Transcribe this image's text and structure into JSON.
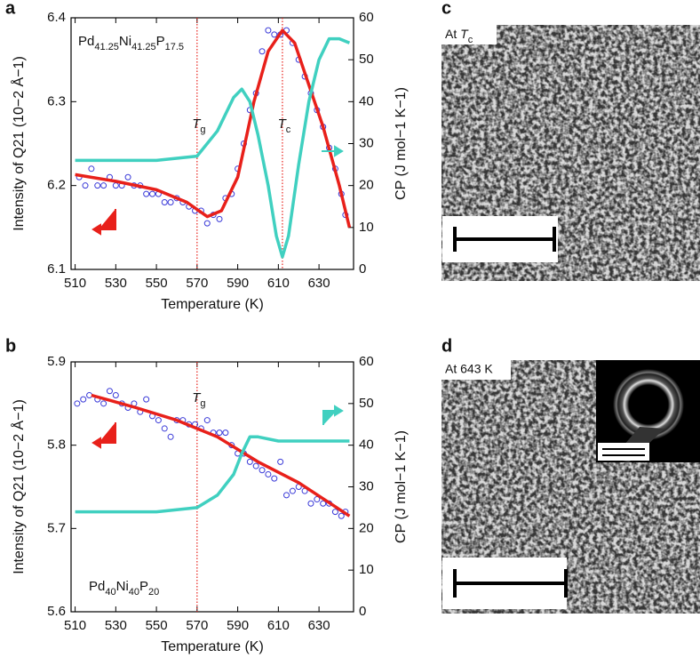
{
  "chart_data": [
    {
      "type": "line",
      "panel": "a",
      "inset_text": "Pd41.25Ni41.25P17.5",
      "xlabel": "Temperature (K)",
      "ylabel": "Intensity of Q21 (10−2 Å−1)",
      "y2label": "CP (J mol−1 K−1)",
      "xlim": [
        508,
        647
      ],
      "xticks": [
        510,
        530,
        550,
        570,
        590,
        610,
        630
      ],
      "ylim": [
        6.1,
        6.4
      ],
      "yticks": [
        6.1,
        6.2,
        6.3,
        6.4
      ],
      "y2lim": [
        0,
        60
      ],
      "y2ticks": [
        0,
        10,
        20,
        30,
        40,
        50,
        60
      ],
      "annotations": [
        {
          "text": "Tg",
          "x": 570
        },
        {
          "text": "Tc",
          "x": 612
        }
      ],
      "series": [
        {
          "mode": "markers",
          "color": "#3a3ad8",
          "x": [
            512,
            515,
            518,
            521,
            524,
            527,
            530,
            533,
            536,
            539,
            542,
            545,
            548,
            551,
            554,
            557,
            560,
            563,
            566,
            569,
            572,
            575,
            578,
            581,
            584,
            587,
            590,
            593,
            596,
            599,
            602,
            605,
            608,
            611,
            614,
            617,
            620,
            623,
            626,
            629,
            632,
            635,
            638,
            641,
            643
          ],
          "values": [
            6.21,
            6.2,
            6.22,
            6.2,
            6.2,
            6.21,
            6.2,
            6.2,
            6.21,
            6.2,
            6.2,
            6.19,
            6.19,
            6.19,
            6.18,
            6.18,
            6.185,
            6.18,
            6.175,
            6.17,
            6.17,
            6.155,
            6.165,
            6.16,
            6.185,
            6.19,
            6.22,
            6.25,
            6.29,
            6.31,
            6.36,
            6.385,
            6.38,
            6.38,
            6.385,
            6.37,
            6.35,
            6.33,
            6.31,
            6.29,
            6.27,
            6.245,
            6.22,
            6.19,
            6.165
          ]
        },
        {
          "mode": "line",
          "color": "#e8201a",
          "x": [
            510,
            530,
            550,
            565,
            575,
            582,
            590,
            598,
            605,
            612,
            618,
            625,
            632,
            640,
            645
          ],
          "values": [
            6.213,
            6.205,
            6.195,
            6.18,
            6.163,
            6.17,
            6.21,
            6.3,
            6.36,
            6.385,
            6.37,
            6.32,
            6.27,
            6.2,
            6.15
          ]
        },
        {
          "mode": "line",
          "axis": "y2",
          "color": "#40d0c0",
          "x": [
            510,
            550,
            570,
            580,
            588,
            592,
            596,
            600,
            605,
            609,
            612,
            615,
            620,
            625,
            630,
            635,
            640,
            645
          ],
          "values": [
            26,
            26,
            27,
            33,
            41,
            43,
            40,
            32,
            20,
            8,
            3,
            8,
            25,
            40,
            50,
            55,
            55,
            54
          ]
        }
      ]
    },
    {
      "type": "line",
      "panel": "b",
      "inset_text": "Pd40Ni40P20",
      "xlabel": "Temperature (K)",
      "ylabel": "Intensity of Q21 (10−2 Å−1)",
      "y2label": "CP (J mol−1 K−1)",
      "xlim": [
        508,
        647
      ],
      "xticks": [
        510,
        530,
        550,
        570,
        590,
        610,
        630
      ],
      "ylim": [
        5.6,
        5.9
      ],
      "yticks": [
        5.6,
        5.7,
        5.8,
        5.9
      ],
      "y2lim": [
        0,
        60
      ],
      "y2ticks": [
        0,
        10,
        20,
        30,
        40,
        50,
        60
      ],
      "annotations": [
        {
          "text": "Tg",
          "x": 570
        }
      ],
      "series": [
        {
          "mode": "markers",
          "color": "#3a3ad8",
          "x": [
            511,
            514,
            517,
            521,
            524,
            527,
            530,
            533,
            536,
            539,
            542,
            545,
            548,
            551,
            554,
            557,
            560,
            563,
            566,
            569,
            572,
            575,
            578,
            581,
            584,
            587,
            590,
            593,
            596,
            599,
            602,
            605,
            608,
            611,
            614,
            617,
            620,
            623,
            626,
            629,
            632,
            635,
            638,
            641,
            643
          ],
          "values": [
            5.85,
            5.855,
            5.86,
            5.855,
            5.85,
            5.865,
            5.86,
            5.85,
            5.845,
            5.85,
            5.84,
            5.855,
            5.835,
            5.83,
            5.82,
            5.81,
            5.83,
            5.83,
            5.825,
            5.825,
            5.82,
            5.83,
            5.815,
            5.815,
            5.815,
            5.8,
            5.79,
            5.79,
            5.78,
            5.775,
            5.77,
            5.765,
            5.76,
            5.78,
            5.74,
            5.745,
            5.75,
            5.745,
            5.73,
            5.735,
            5.73,
            5.73,
            5.72,
            5.715,
            5.72
          ]
        },
        {
          "mode": "line",
          "color": "#e8201a",
          "x": [
            518,
            540,
            560,
            580,
            600,
            620,
            645
          ],
          "values": [
            5.86,
            5.845,
            5.83,
            5.81,
            5.78,
            5.755,
            5.715
          ]
        },
        {
          "mode": "line",
          "axis": "y2",
          "color": "#40d0c0",
          "x": [
            510,
            550,
            570,
            580,
            588,
            592,
            596,
            600,
            610,
            630,
            645
          ],
          "values": [
            24,
            24,
            25,
            28,
            33,
            38,
            42,
            42,
            41,
            41,
            41
          ]
        }
      ]
    }
  ],
  "images": [
    {
      "panel": "c",
      "caption": "At Tc"
    },
    {
      "panel": "d",
      "caption": "At 643 K"
    }
  ]
}
